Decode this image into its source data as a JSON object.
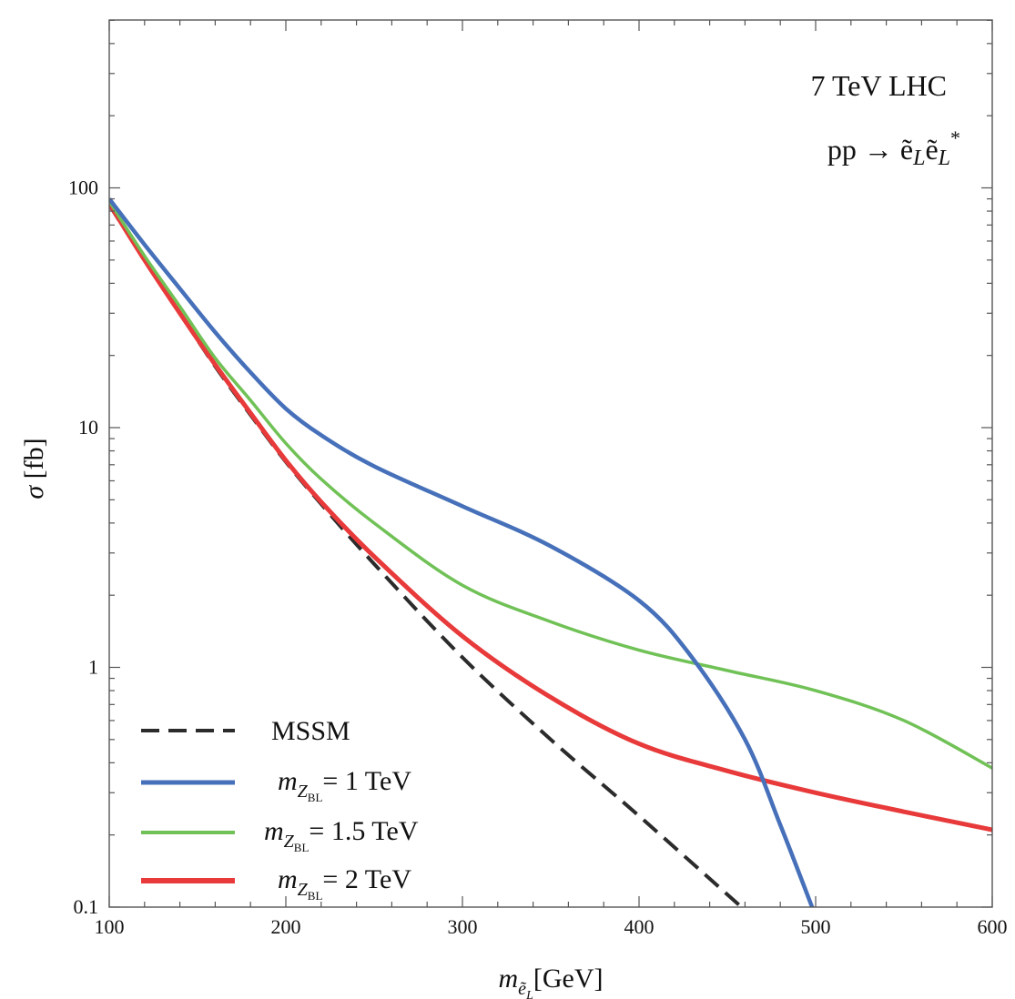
{
  "chart_data": {
    "type": "line",
    "xlabel": "m_{ẽ_L} [GeV]",
    "ylabel": "σ [fb]",
    "xlim": [
      100,
      600
    ],
    "ylim": [
      0.1,
      500
    ],
    "yscale": "log",
    "grid": false,
    "legend_position": "bottom-left",
    "x_ticks": [
      100,
      200,
      300,
      400,
      500,
      600
    ],
    "x_tick_labels": [
      "100",
      "200",
      "300",
      "400",
      "500",
      "600"
    ],
    "y_ticks": [
      0.1,
      1,
      10,
      100
    ],
    "y_tick_labels": [
      "0.1",
      "1",
      "10",
      "100"
    ],
    "annotations": [
      "7 TeV LHC",
      "pp → ẽ_L ẽ_L*"
    ],
    "series": [
      {
        "name": "MSSM",
        "color": "#2b2b2b",
        "dash": true,
        "x": [
          100,
          120,
          140,
          160,
          180,
          200,
          220,
          250,
          300,
          350,
          400,
          458
        ],
        "y": [
          85,
          50,
          30,
          18,
          11.3,
          7.2,
          4.8,
          2.7,
          1.1,
          0.5,
          0.24,
          0.1
        ]
      },
      {
        "name": "m_{Z_BL} = 1 TeV",
        "color": "#4670b9",
        "dash": false,
        "x": [
          100,
          120,
          140,
          160,
          180,
          200,
          220,
          250,
          300,
          350,
          400,
          430,
          460,
          480,
          498
        ],
        "y": [
          90,
          58,
          38,
          25,
          17,
          12,
          9.3,
          6.9,
          4.7,
          3.2,
          1.9,
          1.1,
          0.5,
          0.22,
          0.1
        ]
      },
      {
        "name": "m_{Z_BL} = 1.5 TeV",
        "color": "#70c156",
        "dash": false,
        "x": [
          100,
          120,
          140,
          160,
          180,
          200,
          220,
          250,
          300,
          350,
          400,
          450,
          500,
          550,
          600
        ],
        "y": [
          88,
          52,
          32,
          19.5,
          13,
          8.6,
          6.1,
          4.0,
          2.2,
          1.55,
          1.18,
          0.97,
          0.8,
          0.6,
          0.38
        ]
      },
      {
        "name": "m_{Z_BL} = 2 TeV",
        "color": "#e83a3a",
        "dash": false,
        "x": [
          100,
          120,
          140,
          160,
          180,
          200,
          220,
          250,
          300,
          350,
          400,
          450,
          500,
          550,
          600
        ],
        "y": [
          86,
          50,
          30,
          18.3,
          11.5,
          7.3,
          4.9,
          2.9,
          1.35,
          0.75,
          0.48,
          0.37,
          0.3,
          0.25,
          0.21
        ]
      }
    ],
    "legend": [
      {
        "label": "MSSM",
        "style": "dashed",
        "color": "#2b2b2b"
      },
      {
        "label": "m_{Z_BL}= 1 TeV",
        "style": "solid",
        "color": "#4670b9"
      },
      {
        "label": "m_{Z_BL}= 1.5 TeV",
        "style": "solid",
        "color": "#70c156"
      },
      {
        "label": "m_{Z_BL}= 2 TeV",
        "style": "solid",
        "color": "#e83a3a"
      }
    ],
    "legend_values": [
      "1 TeV",
      "1.5 TeV",
      "2 TeV"
    ]
  }
}
